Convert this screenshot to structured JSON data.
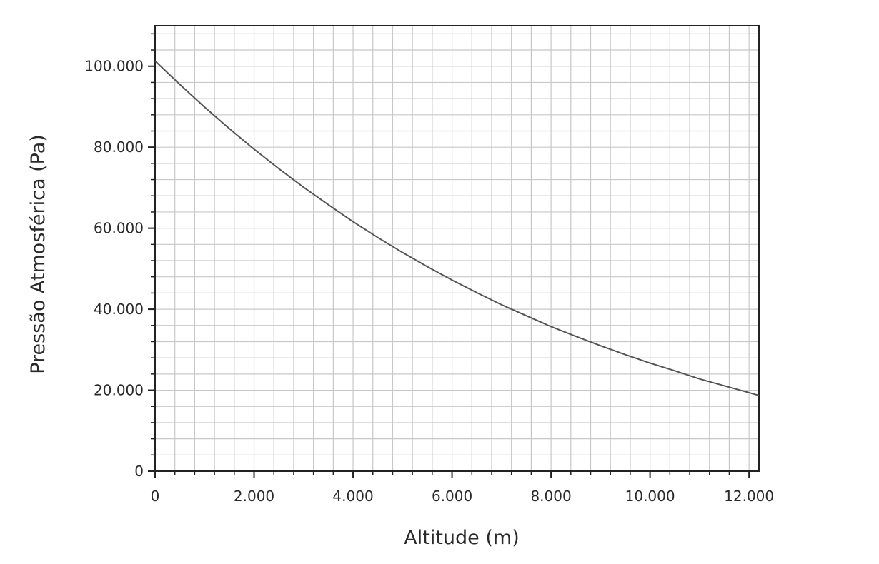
{
  "chart_data": {
    "type": "line",
    "title": "",
    "xlabel": "Altitude (m)",
    "ylabel": "Pressão Atmosférica (Pa)",
    "xlim": [
      0,
      12200
    ],
    "ylim": [
      0,
      110000
    ],
    "x_ticks": [
      0,
      2000,
      4000,
      6000,
      8000,
      10000,
      12000
    ],
    "x_tick_labels": [
      "0",
      "2.000",
      "4.000",
      "6.000",
      "8.000",
      "10.000",
      "12.000"
    ],
    "y_ticks": [
      0,
      20000,
      40000,
      60000,
      80000,
      100000
    ],
    "y_tick_labels": [
      "0",
      "20.000",
      "40.000",
      "60.000",
      "80.000",
      "100.000"
    ],
    "minor_grid_x_step": 400,
    "minor_grid_y_step": 4000,
    "grid": true,
    "legend": "none",
    "line_color": "#555555",
    "grid_color": "#c8c8c8",
    "series": [
      {
        "x": [
          0,
          500,
          1000,
          1500,
          2000,
          2500,
          3000,
          3500,
          4000,
          4500,
          5000,
          5500,
          6000,
          6500,
          7000,
          7500,
          8000,
          8500,
          9000,
          9500,
          10000,
          10500,
          11000,
          11500,
          12000,
          12200
        ],
        "values": [
          101300,
          95500,
          89900,
          84600,
          79500,
          74700,
          70100,
          65800,
          61600,
          57700,
          54000,
          50500,
          47200,
          44100,
          41100,
          38400,
          35700,
          33300,
          31000,
          28800,
          26700,
          24800,
          22800,
          21100,
          19400,
          18700
        ]
      }
    ]
  }
}
